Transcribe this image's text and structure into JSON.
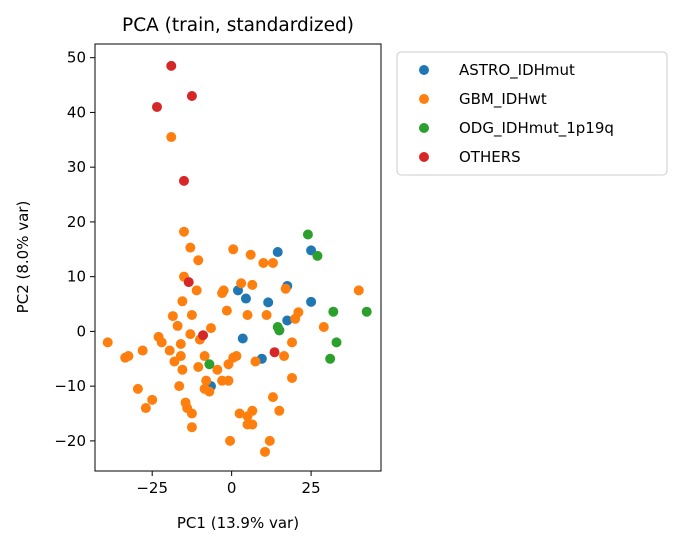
{
  "chart_data": {
    "type": "scatter",
    "title": "PCA (train, standardized)",
    "xlabel": "PC1 (13.9% var)",
    "ylabel": "PC2 (8.0% var)",
    "xlim": [
      -43,
      47
    ],
    "ylim": [
      -25.5,
      52.5
    ],
    "xticks": [
      -25,
      0,
      25
    ],
    "xtick_labels": [
      "−25",
      "0",
      "25"
    ],
    "yticks": [
      -20,
      -10,
      0,
      10,
      20,
      30,
      40,
      50
    ],
    "ytick_labels": [
      "−20",
      "−10",
      "0",
      "10",
      "20",
      "30",
      "40",
      "50"
    ],
    "grid": false,
    "legend_position": "outside upper right",
    "series": [
      {
        "name": "ASTRO_IDHmut",
        "color": "#1f77b4",
        "points": [
          [
            14.5,
            14.5
          ],
          [
            25,
            14.8
          ],
          [
            17.5,
            8.3
          ],
          [
            25,
            5.4
          ],
          [
            11.5,
            5.3
          ],
          [
            4.5,
            6
          ],
          [
            2,
            7.5
          ],
          [
            17.5,
            2
          ],
          [
            15,
            0.2
          ],
          [
            3.5,
            -1.3
          ],
          [
            9.5,
            -5
          ],
          [
            -6.5,
            -10
          ]
        ]
      },
      {
        "name": "GBM_IDHwt",
        "color": "#ff7f0e",
        "points": [
          [
            -19,
            35.5
          ],
          [
            -15,
            18.2
          ],
          [
            -13,
            15.3
          ],
          [
            0.5,
            15
          ],
          [
            13,
            12.5
          ],
          [
            -10.5,
            13
          ],
          [
            6,
            14
          ],
          [
            10,
            12.5
          ],
          [
            -15,
            10
          ],
          [
            -11,
            7.5
          ],
          [
            -15.5,
            5.5
          ],
          [
            -2.5,
            7.5
          ],
          [
            3,
            8.8
          ],
          [
            6.5,
            8.5
          ],
          [
            -3,
            7
          ],
          [
            17,
            7.8
          ],
          [
            -18.5,
            2.8
          ],
          [
            -12.5,
            3
          ],
          [
            -1.5,
            3.8
          ],
          [
            5,
            3
          ],
          [
            11,
            3
          ],
          [
            20,
            2.3
          ],
          [
            21,
            3.5
          ],
          [
            29,
            0.8
          ],
          [
            -17,
            1
          ],
          [
            -23,
            -1
          ],
          [
            -13,
            -0.5
          ],
          [
            -6.5,
            0.6
          ],
          [
            -39,
            -2
          ],
          [
            -22,
            -2
          ],
          [
            -16,
            -2.3
          ],
          [
            -10,
            -1.5
          ],
          [
            19,
            -2
          ],
          [
            -33.5,
            -4.8
          ],
          [
            -28,
            -3.5
          ],
          [
            -19.5,
            -3.5
          ],
          [
            -16,
            -4.5
          ],
          [
            -8.5,
            -4.5
          ],
          [
            -1,
            -6
          ],
          [
            1.5,
            -4.5
          ],
          [
            -32.5,
            -4.5
          ],
          [
            -18,
            -5.5
          ],
          [
            -15.5,
            -7
          ],
          [
            -4.5,
            -7
          ],
          [
            7.5,
            -5.5
          ],
          [
            -10.5,
            -6.5
          ],
          [
            -3,
            -9
          ],
          [
            -8,
            -9
          ],
          [
            -29.5,
            -10.5
          ],
          [
            -16.5,
            -10
          ],
          [
            -8.5,
            -10.5
          ],
          [
            19,
            -8.5
          ],
          [
            -1,
            -9
          ],
          [
            -25,
            -12.5
          ],
          [
            -27,
            -14
          ],
          [
            -14.5,
            -13
          ],
          [
            -7,
            -11
          ],
          [
            13,
            -12
          ],
          [
            -12.5,
            -15
          ],
          [
            2.5,
            -15
          ],
          [
            5,
            -15.5
          ],
          [
            6.5,
            -14.5
          ],
          [
            15,
            -14.5
          ],
          [
            -12.5,
            -17.5
          ],
          [
            5,
            -17
          ],
          [
            6.5,
            -17
          ],
          [
            -0.5,
            -20
          ],
          [
            12,
            -20
          ],
          [
            10.5,
            -22
          ],
          [
            40,
            7.5
          ],
          [
            0.5,
            -4.8
          ],
          [
            -14,
            -14
          ],
          [
            16.5,
            -4.5
          ]
        ]
      },
      {
        "name": "ODG_IDHmut_1p19q",
        "color": "#2ca02c",
        "points": [
          [
            24,
            17.7
          ],
          [
            27,
            13.8
          ],
          [
            32,
            3.6
          ],
          [
            42.5,
            3.6
          ],
          [
            14.5,
            0.8
          ],
          [
            15,
            0.2
          ],
          [
            33,
            -2
          ],
          [
            31,
            -5
          ],
          [
            -7,
            -6
          ]
        ]
      },
      {
        "name": "OTHERS",
        "color": "#d62728",
        "points": [
          [
            -19,
            48.5
          ],
          [
            -23.5,
            41
          ],
          [
            -12.5,
            43
          ],
          [
            -15,
            27.5
          ],
          [
            -13.5,
            9
          ],
          [
            -9,
            -0.7
          ],
          [
            13.5,
            -3.8
          ]
        ]
      }
    ]
  }
}
